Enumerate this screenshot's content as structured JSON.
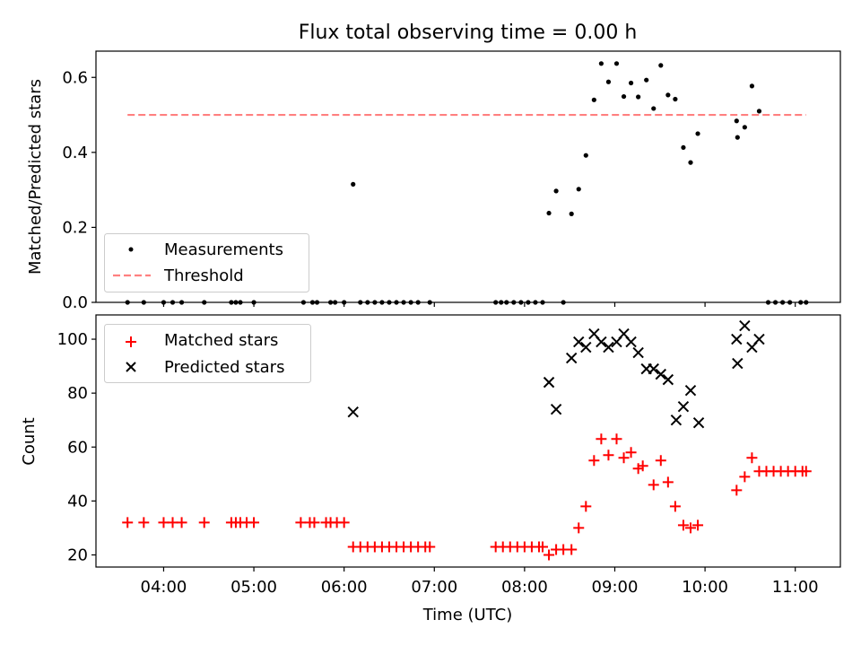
{
  "title": "Flux total observing time = 0.00 h",
  "colors": {
    "measurements": "#000000",
    "threshold": "#ff8080",
    "matched": "#ff0000",
    "predicted": "#000000",
    "axis": "#000000"
  },
  "chart_data": [
    {
      "type": "scatter",
      "ylabel": "Matched/Predicted stars",
      "xlim": [
        3.25,
        11.5
      ],
      "ylim": [
        0,
        0.67
      ],
      "yticks": [
        0.0,
        0.2,
        0.4,
        0.6
      ],
      "ytick_labels": [
        "0.0",
        "0.2",
        "0.4",
        "0.6"
      ],
      "grid": false,
      "legend_position": "lower left",
      "series": [
        {
          "name": "Measurements",
          "points": [
            [
              3.6,
              0
            ],
            [
              3.78,
              0
            ],
            [
              4.0,
              0
            ],
            [
              4.1,
              0
            ],
            [
              4.2,
              0
            ],
            [
              4.45,
              0
            ],
            [
              4.75,
              0
            ],
            [
              4.8,
              0
            ],
            [
              4.85,
              0
            ],
            [
              5.0,
              0
            ],
            [
              5.55,
              0
            ],
            [
              5.65,
              0
            ],
            [
              5.7,
              0
            ],
            [
              5.85,
              0
            ],
            [
              5.9,
              0
            ],
            [
              6.0,
              0
            ],
            [
              6.1,
              0.315
            ],
            [
              6.18,
              0
            ],
            [
              6.26,
              0
            ],
            [
              6.34,
              0
            ],
            [
              6.42,
              0
            ],
            [
              6.5,
              0
            ],
            [
              6.58,
              0
            ],
            [
              6.66,
              0
            ],
            [
              6.74,
              0
            ],
            [
              6.82,
              0
            ],
            [
              6.95,
              0
            ],
            [
              7.68,
              0
            ],
            [
              7.74,
              0
            ],
            [
              7.8,
              0
            ],
            [
              7.88,
              0
            ],
            [
              7.96,
              0
            ],
            [
              8.04,
              0
            ],
            [
              8.12,
              0
            ],
            [
              8.2,
              0
            ],
            [
              8.27,
              0.238
            ],
            [
              8.35,
              0.297
            ],
            [
              8.43,
              0
            ],
            [
              8.52,
              0.236
            ],
            [
              8.6,
              0.302
            ],
            [
              8.68,
              0.392
            ],
            [
              8.77,
              0.54
            ],
            [
              8.85,
              0.637
            ],
            [
              8.93,
              0.588
            ],
            [
              9.02,
              0.637
            ],
            [
              9.1,
              0.549
            ],
            [
              9.18,
              0.585
            ],
            [
              9.26,
              0.548
            ],
            [
              9.35,
              0.593
            ],
            [
              9.43,
              0.517
            ],
            [
              9.51,
              0.632
            ],
            [
              9.59,
              0.553
            ],
            [
              9.67,
              0.542
            ],
            [
              9.76,
              0.413
            ],
            [
              9.84,
              0.373
            ],
            [
              9.92,
              0.45
            ],
            [
              10.35,
              0.484
            ],
            [
              10.36,
              0.44
            ],
            [
              10.44,
              0.467
            ],
            [
              10.52,
              0.577
            ],
            [
              10.6,
              0.51
            ],
            [
              10.7,
              0
            ],
            [
              10.78,
              0
            ],
            [
              10.86,
              0
            ],
            [
              10.94,
              0
            ],
            [
              11.06,
              0
            ],
            [
              11.12,
              0
            ]
          ]
        },
        {
          "name": "Threshold",
          "x": [
            3.6,
            11.12
          ],
          "y": [
            0.5,
            0.5
          ]
        }
      ]
    },
    {
      "type": "scatter",
      "xlabel": "Time (UTC)",
      "ylabel": "Count",
      "xlim": [
        3.25,
        11.5
      ],
      "ylim": [
        15.5,
        109
      ],
      "xticks": [
        4,
        5,
        6,
        7,
        8,
        9,
        10,
        11
      ],
      "xtick_labels": [
        "04:00",
        "05:00",
        "06:00",
        "07:00",
        "08:00",
        "09:00",
        "10:00",
        "11:00"
      ],
      "yticks": [
        20,
        40,
        60,
        80,
        100
      ],
      "ytick_labels": [
        "20",
        "40",
        "60",
        "80",
        "100"
      ],
      "grid": false,
      "legend_position": "upper left",
      "series": [
        {
          "name": "Matched stars",
          "points": [
            [
              3.6,
              32
            ],
            [
              3.78,
              32
            ],
            [
              4.0,
              32
            ],
            [
              4.1,
              32
            ],
            [
              4.2,
              32
            ],
            [
              4.45,
              32
            ],
            [
              4.75,
              32
            ],
            [
              4.8,
              32
            ],
            [
              4.85,
              32
            ],
            [
              4.92,
              32
            ],
            [
              5.0,
              32
            ],
            [
              5.52,
              32
            ],
            [
              5.62,
              32
            ],
            [
              5.67,
              32
            ],
            [
              5.8,
              32
            ],
            [
              5.85,
              32
            ],
            [
              5.92,
              32
            ],
            [
              6.0,
              32
            ],
            [
              6.1,
              23
            ],
            [
              6.18,
              23
            ],
            [
              6.26,
              23
            ],
            [
              6.34,
              23
            ],
            [
              6.42,
              23
            ],
            [
              6.5,
              23
            ],
            [
              6.58,
              23
            ],
            [
              6.66,
              23
            ],
            [
              6.74,
              23
            ],
            [
              6.82,
              23
            ],
            [
              6.9,
              23
            ],
            [
              6.95,
              23
            ],
            [
              7.68,
              23
            ],
            [
              7.76,
              23
            ],
            [
              7.84,
              23
            ],
            [
              7.92,
              23
            ],
            [
              8.0,
              23
            ],
            [
              8.08,
              23
            ],
            [
              8.16,
              23
            ],
            [
              8.2,
              23
            ],
            [
              8.27,
              20
            ],
            [
              8.35,
              22
            ],
            [
              8.43,
              22
            ],
            [
              8.52,
              22
            ],
            [
              8.6,
              30
            ],
            [
              8.68,
              38
            ],
            [
              8.77,
              55
            ],
            [
              8.85,
              63
            ],
            [
              8.93,
              57
            ],
            [
              9.02,
              63
            ],
            [
              9.1,
              56
            ],
            [
              9.18,
              58
            ],
            [
              9.26,
              52
            ],
            [
              9.31,
              53
            ],
            [
              9.43,
              46
            ],
            [
              9.51,
              55
            ],
            [
              9.59,
              47
            ],
            [
              9.67,
              38
            ],
            [
              9.76,
              31
            ],
            [
              9.84,
              30
            ],
            [
              9.92,
              31
            ],
            [
              10.35,
              44
            ],
            [
              10.44,
              49
            ],
            [
              10.52,
              56
            ],
            [
              10.6,
              51
            ],
            [
              10.68,
              51
            ],
            [
              10.76,
              51
            ],
            [
              10.84,
              51
            ],
            [
              10.92,
              51
            ],
            [
              11.0,
              51
            ],
            [
              11.08,
              51
            ],
            [
              11.12,
              51
            ]
          ]
        },
        {
          "name": "Predicted stars",
          "points": [
            [
              6.1,
              73
            ],
            [
              8.27,
              84
            ],
            [
              8.35,
              74
            ],
            [
              8.52,
              93
            ],
            [
              8.6,
              99
            ],
            [
              8.68,
              97
            ],
            [
              8.77,
              102
            ],
            [
              8.85,
              99
            ],
            [
              8.93,
              97
            ],
            [
              9.02,
              99
            ],
            [
              9.1,
              102
            ],
            [
              9.18,
              99
            ],
            [
              9.26,
              95
            ],
            [
              9.35,
              89
            ],
            [
              9.43,
              89
            ],
            [
              9.51,
              87
            ],
            [
              9.59,
              85
            ],
            [
              9.68,
              70
            ],
            [
              9.76,
              75
            ],
            [
              9.84,
              81
            ],
            [
              9.93,
              69
            ],
            [
              10.35,
              100
            ],
            [
              10.36,
              91
            ],
            [
              10.44,
              105
            ],
            [
              10.52,
              97
            ],
            [
              10.6,
              100
            ]
          ]
        }
      ]
    }
  ]
}
